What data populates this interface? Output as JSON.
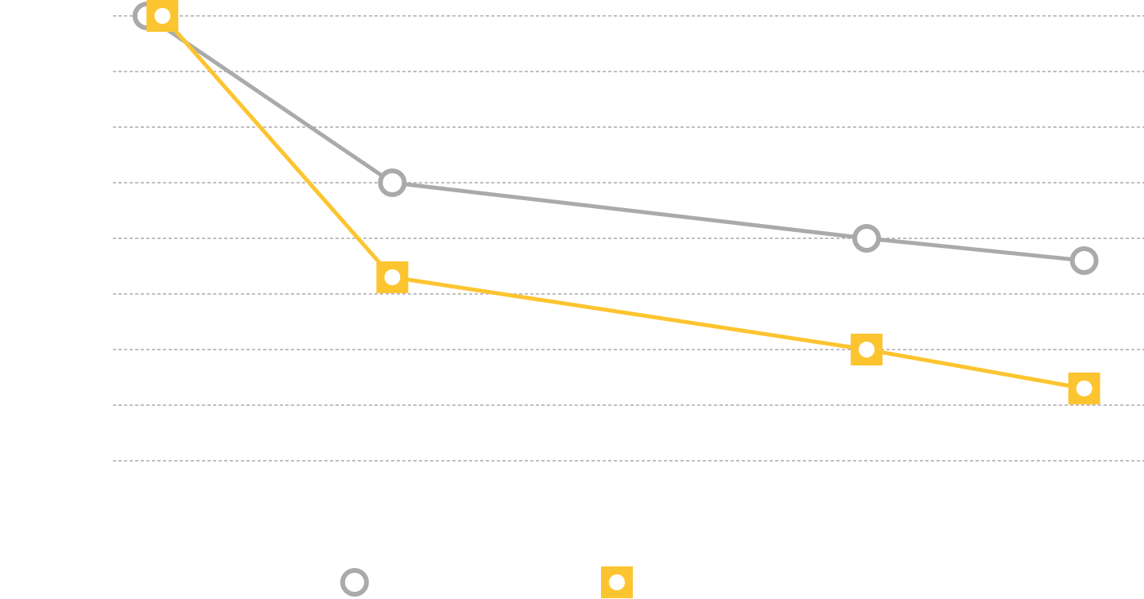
{
  "chart_data": {
    "type": "line",
    "xlim": [
      0,
      100
    ],
    "ylim": [
      0,
      8
    ],
    "yticks": [
      0,
      1,
      2,
      3,
      4,
      5,
      6,
      7,
      8
    ],
    "grid": true,
    "legend": "bottom",
    "series": [
      {
        "color": "#aaaaaa",
        "marker": "circle",
        "x": [
          3.3,
          27.1,
          73.1,
          94.2
        ],
        "values": [
          8,
          5,
          4,
          3.6
        ]
      },
      {
        "color": "#fcc42f",
        "marker": "square",
        "x": [
          4.8,
          27.1,
          73.1,
          94.2
        ],
        "values": [
          8,
          3.3,
          2,
          1.3
        ]
      }
    ]
  }
}
